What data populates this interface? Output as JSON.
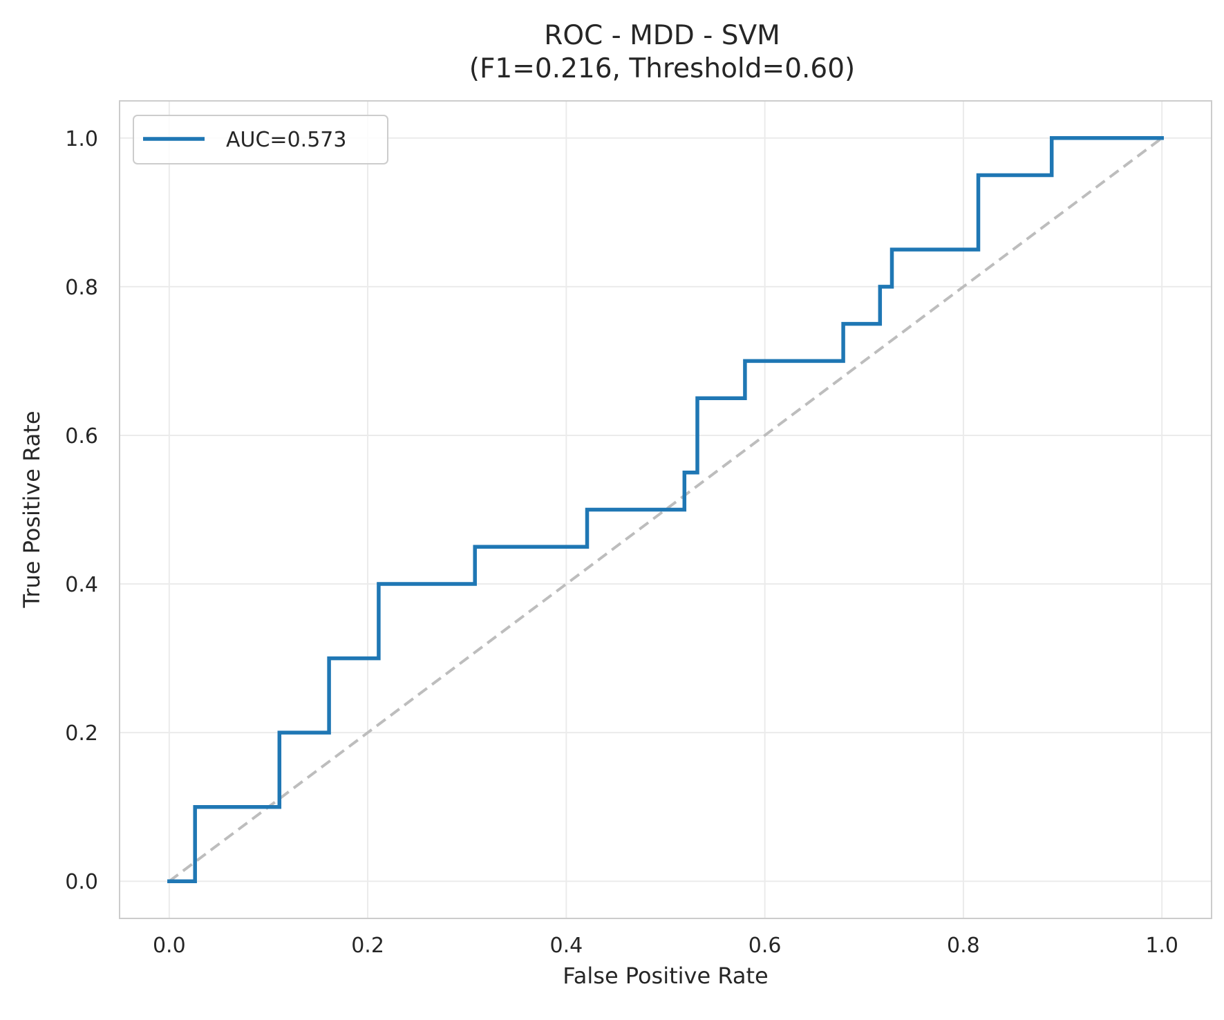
{
  "chart_data": {
    "type": "line",
    "title": "ROC - MDD - SVM",
    "subtitle": "(F1=0.216, Threshold=0.60)",
    "xlabel": "False Positive Rate",
    "ylabel": "True Positive Rate",
    "xlim": [
      -0.05,
      1.05
    ],
    "ylim": [
      -0.05,
      1.05
    ],
    "xticks": [
      0.0,
      0.2,
      0.4,
      0.6,
      0.8,
      1.0
    ],
    "yticks": [
      0.0,
      0.2,
      0.4,
      0.6,
      0.8,
      1.0
    ],
    "grid": true,
    "legend_position": "top-left",
    "series": [
      {
        "name": "AUC=0.573",
        "color": "#1f77b4",
        "style": "solid",
        "x": [
          0.0,
          0.026,
          0.026,
          0.111,
          0.111,
          0.161,
          0.161,
          0.211,
          0.211,
          0.308,
          0.308,
          0.421,
          0.421,
          0.519,
          0.519,
          0.532,
          0.532,
          0.58,
          0.58,
          0.679,
          0.679,
          0.716,
          0.716,
          0.728,
          0.728,
          0.815,
          0.815,
          0.889,
          0.889,
          1.0
        ],
        "y": [
          0.0,
          0.0,
          0.1,
          0.1,
          0.2,
          0.2,
          0.3,
          0.3,
          0.4,
          0.4,
          0.45,
          0.45,
          0.5,
          0.5,
          0.55,
          0.55,
          0.65,
          0.65,
          0.7,
          0.7,
          0.75,
          0.75,
          0.8,
          0.8,
          0.85,
          0.85,
          0.95,
          0.95,
          1.0,
          1.0
        ]
      }
    ],
    "reference_line": {
      "x": [
        0,
        1
      ],
      "y": [
        0,
        1
      ],
      "color": "#bdbdbd",
      "style": "dashed"
    }
  }
}
